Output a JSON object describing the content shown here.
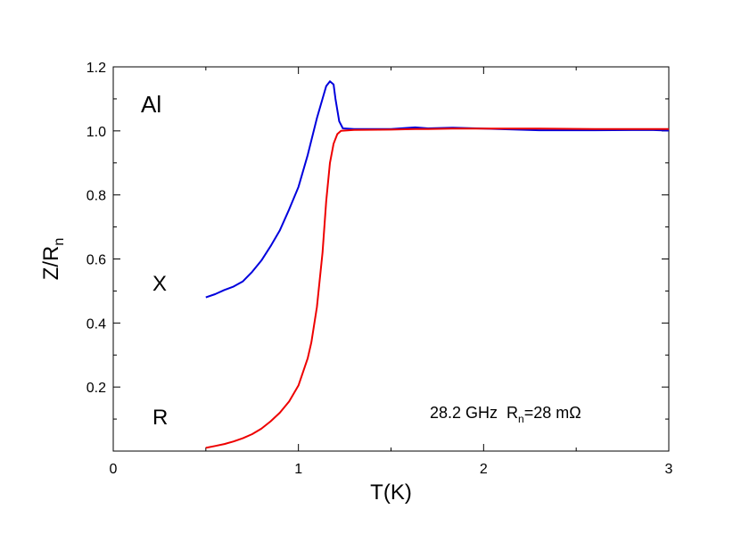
{
  "chart_data": {
    "type": "line",
    "title": "",
    "xlabel": "T(K)",
    "ylabel": {
      "main": "Z/R",
      "sub": "n"
    },
    "xlim": [
      0,
      3
    ],
    "ylim": [
      0,
      1.2
    ],
    "xticks": [
      0,
      1,
      2,
      3
    ],
    "yticks": [
      0.2,
      0.4,
      0.6,
      0.8,
      1.0,
      1.2
    ],
    "xtick_labels": [
      "0",
      "1",
      "2",
      "3"
    ],
    "ytick_labels": [
      "0.2",
      "0.4",
      "0.6",
      "0.8",
      "1.0",
      "1.2"
    ],
    "grid": false,
    "annotations": {
      "material": "Al",
      "series_x_label": "X",
      "series_r_label": "R",
      "condition": {
        "freq": "28.2 GHz",
        "r": "R",
        "r_sub": "n",
        "r_value": "=28 mΩ"
      }
    },
    "series": [
      {
        "name": "X",
        "color": "#0000dd",
        "points": [
          [
            0.5,
            0.48
          ],
          [
            0.55,
            0.49
          ],
          [
            0.6,
            0.503
          ],
          [
            0.65,
            0.514
          ],
          [
            0.7,
            0.53
          ],
          [
            0.75,
            0.56
          ],
          [
            0.8,
            0.595
          ],
          [
            0.85,
            0.64
          ],
          [
            0.9,
            0.69
          ],
          [
            0.95,
            0.755
          ],
          [
            1.0,
            0.825
          ],
          [
            1.05,
            0.925
          ],
          [
            1.1,
            1.04
          ],
          [
            1.15,
            1.14
          ],
          [
            1.17,
            1.155
          ],
          [
            1.19,
            1.145
          ],
          [
            1.2,
            1.1
          ],
          [
            1.22,
            1.03
          ],
          [
            1.24,
            1.008
          ],
          [
            1.3,
            1.006
          ],
          [
            1.5,
            1.006
          ],
          [
            1.63,
            1.011
          ],
          [
            1.7,
            1.008
          ],
          [
            1.83,
            1.01
          ],
          [
            2.0,
            1.007
          ],
          [
            2.3,
            1.002
          ],
          [
            2.6,
            1.002
          ],
          [
            2.9,
            1.003
          ],
          [
            3.0,
            1.001
          ]
        ]
      },
      {
        "name": "R",
        "color": "#ee0000",
        "points": [
          [
            0.5,
            0.01
          ],
          [
            0.55,
            0.016
          ],
          [
            0.6,
            0.022
          ],
          [
            0.65,
            0.03
          ],
          [
            0.7,
            0.04
          ],
          [
            0.75,
            0.053
          ],
          [
            0.8,
            0.07
          ],
          [
            0.85,
            0.093
          ],
          [
            0.9,
            0.12
          ],
          [
            0.95,
            0.155
          ],
          [
            1.0,
            0.205
          ],
          [
            1.05,
            0.29
          ],
          [
            1.07,
            0.34
          ],
          [
            1.1,
            0.45
          ],
          [
            1.13,
            0.62
          ],
          [
            1.15,
            0.78
          ],
          [
            1.17,
            0.9
          ],
          [
            1.19,
            0.96
          ],
          [
            1.21,
            0.99
          ],
          [
            1.23,
            1.0
          ],
          [
            1.3,
            1.003
          ],
          [
            1.5,
            1.004
          ],
          [
            1.63,
            1.006
          ],
          [
            1.7,
            1.006
          ],
          [
            1.83,
            1.007
          ],
          [
            2.0,
            1.007
          ],
          [
            2.3,
            1.007
          ],
          [
            2.6,
            1.006
          ],
          [
            3.0,
            1.006
          ]
        ]
      }
    ]
  }
}
